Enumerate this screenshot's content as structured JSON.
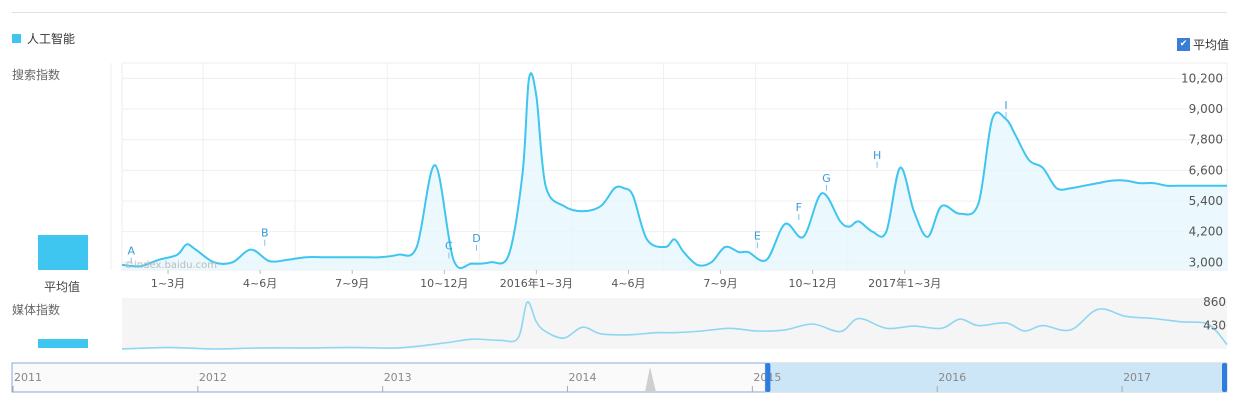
{
  "legend": {
    "series_name": "人工智能",
    "avg_toggle_label": "平均值",
    "avg_checked": true
  },
  "search_label": "搜索指数",
  "media_label": "媒体指数",
  "avg_label": "平均值",
  "watermark": "©index.baidu.com",
  "colors": {
    "line": "#3ec5f0",
    "fill": "#e6f6fc",
    "media_line": "#8fd6f2",
    "nav_sel": "#cde6f7",
    "handle": "#2d7de0"
  },
  "chart_data": [
    {
      "type": "area",
      "title": "",
      "series": [
        {
          "name": "人工智能",
          "x": [
            0,
            0.2,
            0.4,
            0.6,
            0.7,
            0.8,
            1.0,
            1.2,
            1.4,
            1.6,
            1.8,
            2.0,
            2.2,
            2.4,
            2.6,
            2.8,
            3.0,
            3.2,
            3.4,
            3.6,
            3.8,
            4.0,
            4.2,
            4.35,
            4.42,
            4.5,
            4.6,
            4.8,
            5.0,
            5.2,
            5.35,
            5.45,
            5.55,
            5.7,
            5.9,
            6.0,
            6.1,
            6.25,
            6.4,
            6.55,
            6.7,
            6.8,
            7.0,
            7.2,
            7.4,
            7.6,
            7.8,
            7.9,
            8.0,
            8.15,
            8.3,
            8.45,
            8.6,
            8.75,
            8.9,
            9.1,
            9.3,
            9.45,
            9.6,
            9.7,
            9.85,
            10.0,
            10.15,
            10.3,
            10.45,
            10.6,
            10.75,
            10.9,
            11.05,
            11.2,
            11.35,
            11.5,
            11.65,
            11.8,
            11.95,
            12.0
          ],
          "values": [
            2900,
            2850,
            3100,
            3300,
            3700,
            3500,
            3000,
            3000,
            3500,
            3050,
            3100,
            3200,
            3200,
            3200,
            3200,
            3200,
            3300,
            3600,
            6800,
            3100,
            2950,
            3000,
            3300,
            6500,
            10200,
            9500,
            6000,
            5200,
            5000,
            5200,
            5900,
            5900,
            5600,
            3900,
            3600,
            3900,
            3400,
            2900,
            3000,
            3600,
            3400,
            3400,
            3100,
            4500,
            4000,
            5700,
            4600,
            4400,
            4600,
            4200,
            4200,
            6700,
            5000,
            4000,
            5200,
            4900,
            5300,
            8600,
            8600,
            8000,
            7000,
            6700,
            5900,
            5900,
            6000,
            6100,
            6200,
            6200,
            6100,
            6100,
            6000,
            6000,
            6000,
            6000,
            6000,
            6000
          ]
        }
      ],
      "x_ticks": [
        "1~3月",
        "4~6月",
        "7~9月",
        "10~12月",
        "2016年1~3月",
        "4~6月",
        "7~9月",
        "10~12月",
        "2017年1~3月"
      ],
      "y_ticks": [
        "3,000",
        "4,200",
        "5,400",
        "6,600",
        "7,800",
        "9,000",
        "10,200"
      ],
      "ylim": [
        2700,
        10800
      ],
      "annotations": [
        {
          "label": "A",
          "x": 0.1,
          "y": 2950
        },
        {
          "label": "B",
          "x": 1.55,
          "y": 3650
        },
        {
          "label": "C",
          "x": 3.55,
          "y": 3150
        },
        {
          "label": "D",
          "x": 3.85,
          "y": 3450
        },
        {
          "label": "E",
          "x": 6.9,
          "y": 3550
        },
        {
          "label": "F",
          "x": 7.35,
          "y": 4650
        },
        {
          "label": "G",
          "x": 7.65,
          "y": 5800
        },
        {
          "label": "H",
          "x": 8.2,
          "y": 6700
        },
        {
          "label": "I",
          "x": 9.6,
          "y": 8650
        }
      ],
      "average": 4500
    },
    {
      "type": "line",
      "title": "",
      "series": [
        {
          "name": "媒体指数",
          "x": [
            0,
            0.5,
            1.0,
            1.5,
            2.0,
            2.5,
            3.0,
            3.5,
            3.8,
            4.1,
            4.3,
            4.4,
            4.5,
            4.6,
            4.8,
            5.0,
            5.2,
            5.5,
            5.8,
            6.0,
            6.3,
            6.6,
            6.9,
            7.2,
            7.5,
            7.8,
            8.0,
            8.3,
            8.6,
            8.9,
            9.1,
            9.3,
            9.6,
            9.8,
            10.0,
            10.3,
            10.6,
            10.9,
            11.2,
            11.5,
            11.8,
            12.0
          ],
          "values": [
            0,
            30,
            0,
            20,
            20,
            30,
            20,
            110,
            180,
            160,
            200,
            860,
            500,
            320,
            200,
            400,
            280,
            260,
            300,
            300,
            330,
            380,
            330,
            350,
            460,
            320,
            560,
            380,
            420,
            380,
            550,
            430,
            480,
            330,
            430,
            350,
            730,
            600,
            560,
            500,
            450,
            80
          ]
        }
      ],
      "y_ticks": [
        "430",
        "860"
      ],
      "ylim": [
        0,
        900
      ],
      "average": 330
    }
  ],
  "navigator": {
    "years": [
      "2011",
      "2012",
      "2013",
      "2014",
      "2015",
      "2016",
      "2017"
    ],
    "selected_from": "2015",
    "selected_to": "2017"
  }
}
